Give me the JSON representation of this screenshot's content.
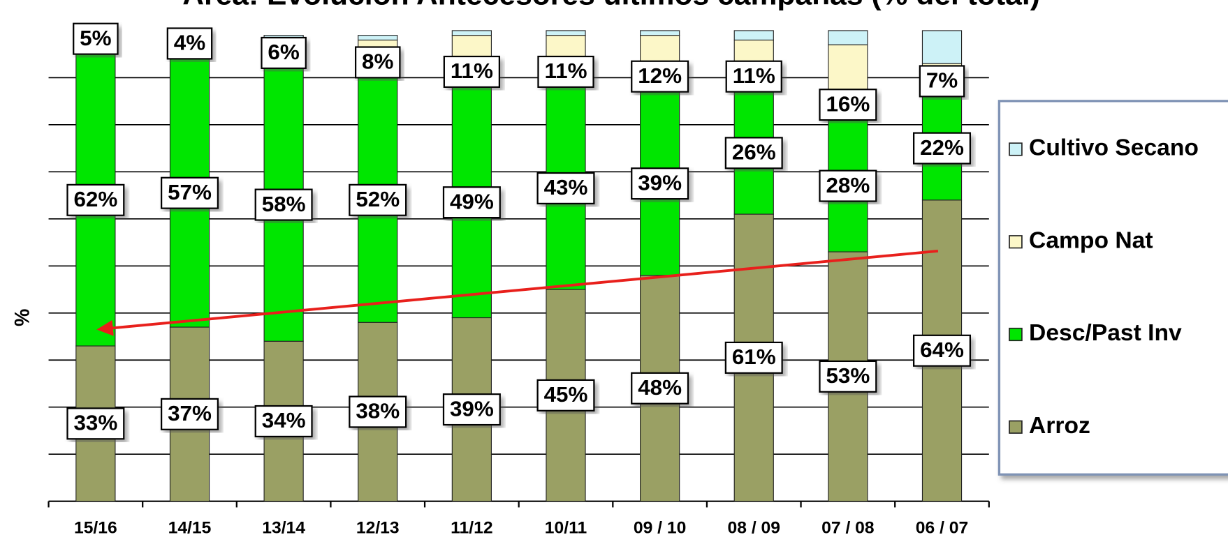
{
  "chart_data": {
    "type": "stacked_bar",
    "title": "Area: Evolución Antecesores últimos campañas (% del total)",
    "y_label": "%",
    "categories": [
      "15/16",
      "14/15",
      "13/14",
      "12/13",
      "11/12",
      "10/11",
      "09 / 10",
      "08 / 09",
      "07 / 08",
      "06 / 07"
    ],
    "series": [
      {
        "name": "Arroz",
        "color": "#9aa064",
        "values": [
          33,
          37,
          34,
          38,
          39,
          45,
          48,
          61,
          53,
          64
        ],
        "value_labels": [
          "33%",
          "37%",
          "34%",
          "38%",
          "39%",
          "45%",
          "48%",
          "61%",
          "53%",
          "64%"
        ]
      },
      {
        "name": "Desc/Past Inv",
        "color": "#00e600",
        "values": [
          62,
          57,
          58,
          52,
          49,
          43,
          39,
          26,
          28,
          22
        ],
        "value_labels": [
          "62%",
          "57%",
          "58%",
          "52%",
          "49%",
          "43%",
          "39%",
          "26%",
          "28%",
          "22%"
        ]
      },
      {
        "name": "Campo Nat",
        "color": "#fcf7c8",
        "values": [
          5,
          4,
          6,
          8,
          11,
          11,
          12,
          11,
          16,
          7
        ],
        "value_labels": [
          "5%",
          "4%",
          "6%",
          "8%",
          "11%",
          "11%",
          "12%",
          "11%",
          "16%",
          "7%"
        ]
      },
      {
        "name": "Cultivo Secano",
        "color": "#cdf2f7",
        "values": [
          0,
          0,
          1,
          1,
          1,
          1,
          1,
          2,
          3,
          7
        ]
      }
    ],
    "ylim": [
      0,
      100
    ],
    "gridlines": [
      10,
      20,
      30,
      40,
      50,
      60,
      70,
      80,
      90
    ],
    "legend": "right"
  }
}
